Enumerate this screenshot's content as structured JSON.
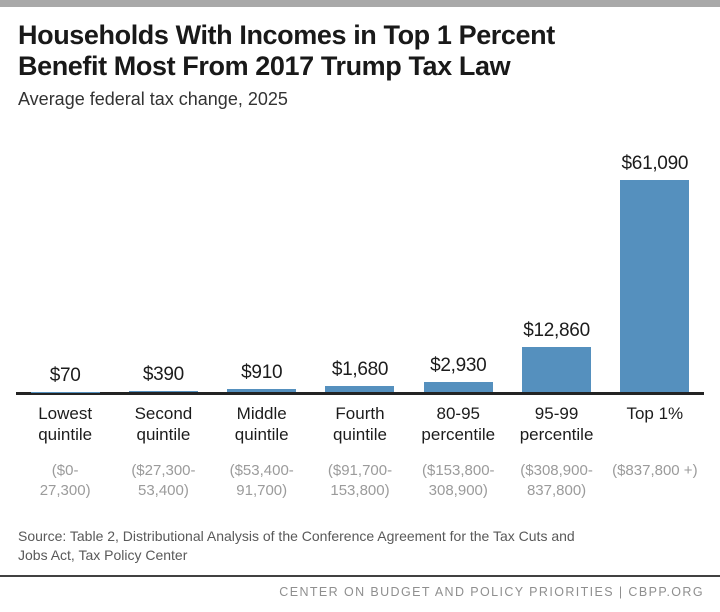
{
  "header": {
    "title": "Households With Incomes in Top 1 Percent\nBenefit Most From 2017 Trump Tax Law",
    "subtitle": "Average federal tax change, 2025"
  },
  "chart_data": {
    "type": "bar",
    "title": "Households With Incomes in Top 1 Percent Benefit Most From 2017 Trump Tax Law",
    "subtitle": "Average federal tax change, 2025",
    "unit": "US dollars",
    "categories": [
      "Lowest quintile",
      "Second quintile",
      "Middle quintile",
      "Fourth quintile",
      "80-95 percentile",
      "95-99 percentile",
      "Top 1%"
    ],
    "category_display": [
      "Lowest\nquintile",
      "Second\nquintile",
      "Middle\nquintile",
      "Fourth\nquintile",
      "80-95\npercentile",
      "95-99\npercentile",
      "Top 1%"
    ],
    "income_ranges": [
      "($0-\n27,300)",
      "($27,300-\n53,400)",
      "($53,400-\n91,700)",
      "($91,700-\n153,800)",
      "($153,800-\n308,900)",
      "($308,900-\n837,800)",
      "($837,800 +)"
    ],
    "values": [
      70,
      390,
      910,
      1680,
      2930,
      12860,
      61090
    ],
    "value_labels": [
      "$70",
      "$390",
      "$910",
      "$1,680",
      "$2,930",
      "$12,860",
      "$61,090"
    ],
    "ylim": [
      0,
      61090
    ],
    "grid": false,
    "legend": false,
    "bar_color": "#5590be",
    "axis_color": "#232323"
  },
  "source": {
    "text": "Source: Table 2, Distributional Analysis of the Conference Agreement for the Tax Cuts and\nJobs Act, Tax Policy Center"
  },
  "footer": {
    "text": "CENTER ON BUDGET AND POLICY PRIORITIES | CBPP.ORG"
  },
  "colors": {
    "top_bar": "#a9a9a9",
    "bar_blue": "#5590be",
    "axis_line": "#232323",
    "range_gray": "#9b9b9b",
    "footer_gray": "#8f8f8f"
  }
}
